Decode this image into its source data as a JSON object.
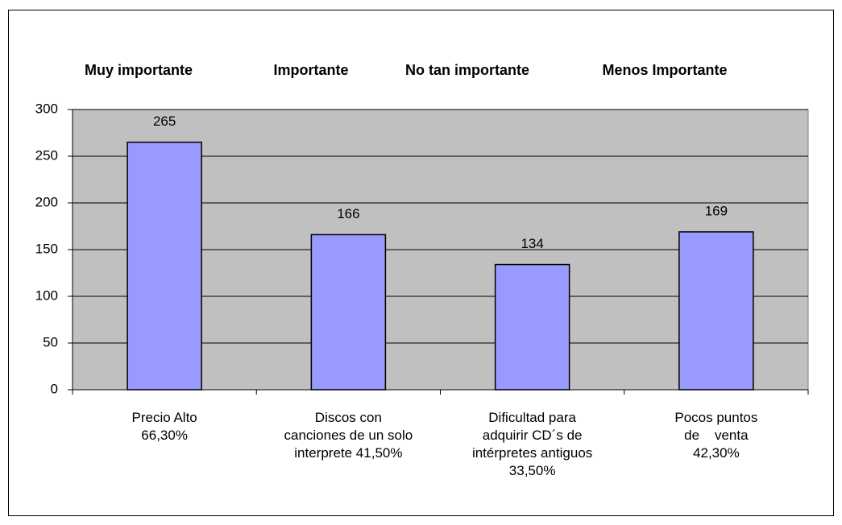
{
  "chart_data": {
    "type": "bar",
    "header_labels": [
      "Muy importante",
      "Importante",
      "No tan importante",
      "Menos Importante"
    ],
    "categories": [
      "Precio Alto\n66,30%",
      "Discos con\ncanciones de un solo\ninterprete 41,50%",
      "Dificultad para\nadquirir CD´s de\nintérpretes antiguos\n33,50%",
      "Pocos puntos\nde    venta\n42,30%"
    ],
    "values": [
      265,
      166,
      134,
      169
    ],
    "color": "#9999ff",
    "ylim": [
      0,
      300
    ],
    "yticks": [
      0,
      50,
      100,
      150,
      200,
      250,
      300
    ],
    "grid": true
  }
}
